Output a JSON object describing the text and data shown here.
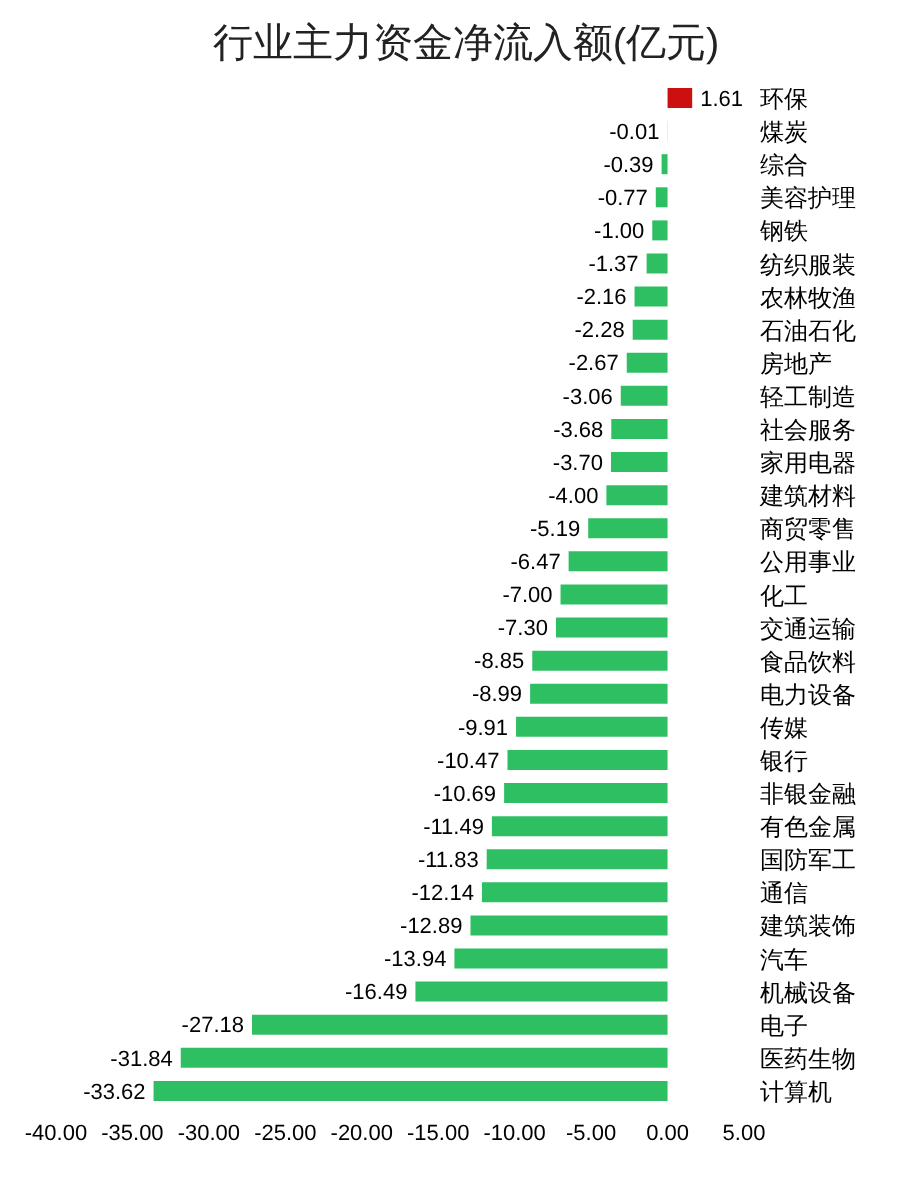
{
  "chart_data": {
    "type": "bar",
    "orientation": "horizontal",
    "title": "行业主力资金净流入额(亿元)",
    "categories": [
      "环保",
      "煤炭",
      "综合",
      "美容护理",
      "钢铁",
      "纺织服装",
      "农林牧渔",
      "石油石化",
      "房地产",
      "轻工制造",
      "社会服务",
      "家用电器",
      "建筑材料",
      "商贸零售",
      "公用事业",
      "化工",
      "交通运输",
      "食品饮料",
      "电力设备",
      "传媒",
      "银行",
      "非银金融",
      "有色金属",
      "国防军工",
      "通信",
      "建筑装饰",
      "汽车",
      "机械设备",
      "电子",
      "医药生物",
      "计算机"
    ],
    "values": [
      1.61,
      -0.01,
      -0.39,
      -0.77,
      -1.0,
      -1.37,
      -2.16,
      -2.28,
      -2.67,
      -3.06,
      -3.68,
      -3.7,
      -4.0,
      -5.19,
      -6.47,
      -7.0,
      -7.3,
      -8.85,
      -8.99,
      -9.91,
      -10.47,
      -10.69,
      -11.49,
      -11.83,
      -12.14,
      -12.89,
      -13.94,
      -16.49,
      -27.18,
      -31.84,
      -33.62
    ],
    "value_labels": [
      "1.61",
      "-0.01",
      "-0.39",
      "-0.77",
      "-1.00",
      "-1.37",
      "-2.16",
      "-2.28",
      "-2.67",
      "-3.06",
      "-3.68",
      "-3.70",
      "-4.00",
      "-5.19",
      "-6.47",
      "-7.00",
      "-7.30",
      "-8.85",
      "-8.99",
      "-9.91",
      "-10.47",
      "-10.69",
      "-11.49",
      "-11.83",
      "-12.14",
      "-12.89",
      "-13.94",
      "-16.49",
      "-27.18",
      "-31.84",
      "-33.62"
    ],
    "colors": [
      "#cc1010",
      "#2fbf63",
      "#2fbf63",
      "#2fbf63",
      "#2fbf63",
      "#2fbf63",
      "#2fbf63",
      "#2fbf63",
      "#2fbf63",
      "#2fbf63",
      "#2fbf63",
      "#2fbf63",
      "#2fbf63",
      "#2fbf63",
      "#2fbf63",
      "#2fbf63",
      "#2fbf63",
      "#2fbf63",
      "#2fbf63",
      "#2fbf63",
      "#2fbf63",
      "#2fbf63",
      "#2fbf63",
      "#2fbf63",
      "#2fbf63",
      "#2fbf63",
      "#2fbf63",
      "#2fbf63",
      "#2fbf63",
      "#2fbf63",
      "#2fbf63"
    ],
    "xlim": [
      -40,
      5
    ],
    "xticks": [
      {
        "value": -40,
        "label": "-40.00"
      },
      {
        "value": -35,
        "label": "-35.00"
      },
      {
        "value": -30,
        "label": "-30.00"
      },
      {
        "value": -25,
        "label": "-25.00"
      },
      {
        "value": -20,
        "label": "-20.00"
      },
      {
        "value": -15,
        "label": "-15.00"
      },
      {
        "value": -10,
        "label": "-10.00"
      },
      {
        "value": -5,
        "label": "-5.00"
      },
      {
        "value": 0,
        "label": "0.00"
      },
      {
        "value": 5,
        "label": "5.00"
      }
    ],
    "grid": false,
    "legend": false
  }
}
